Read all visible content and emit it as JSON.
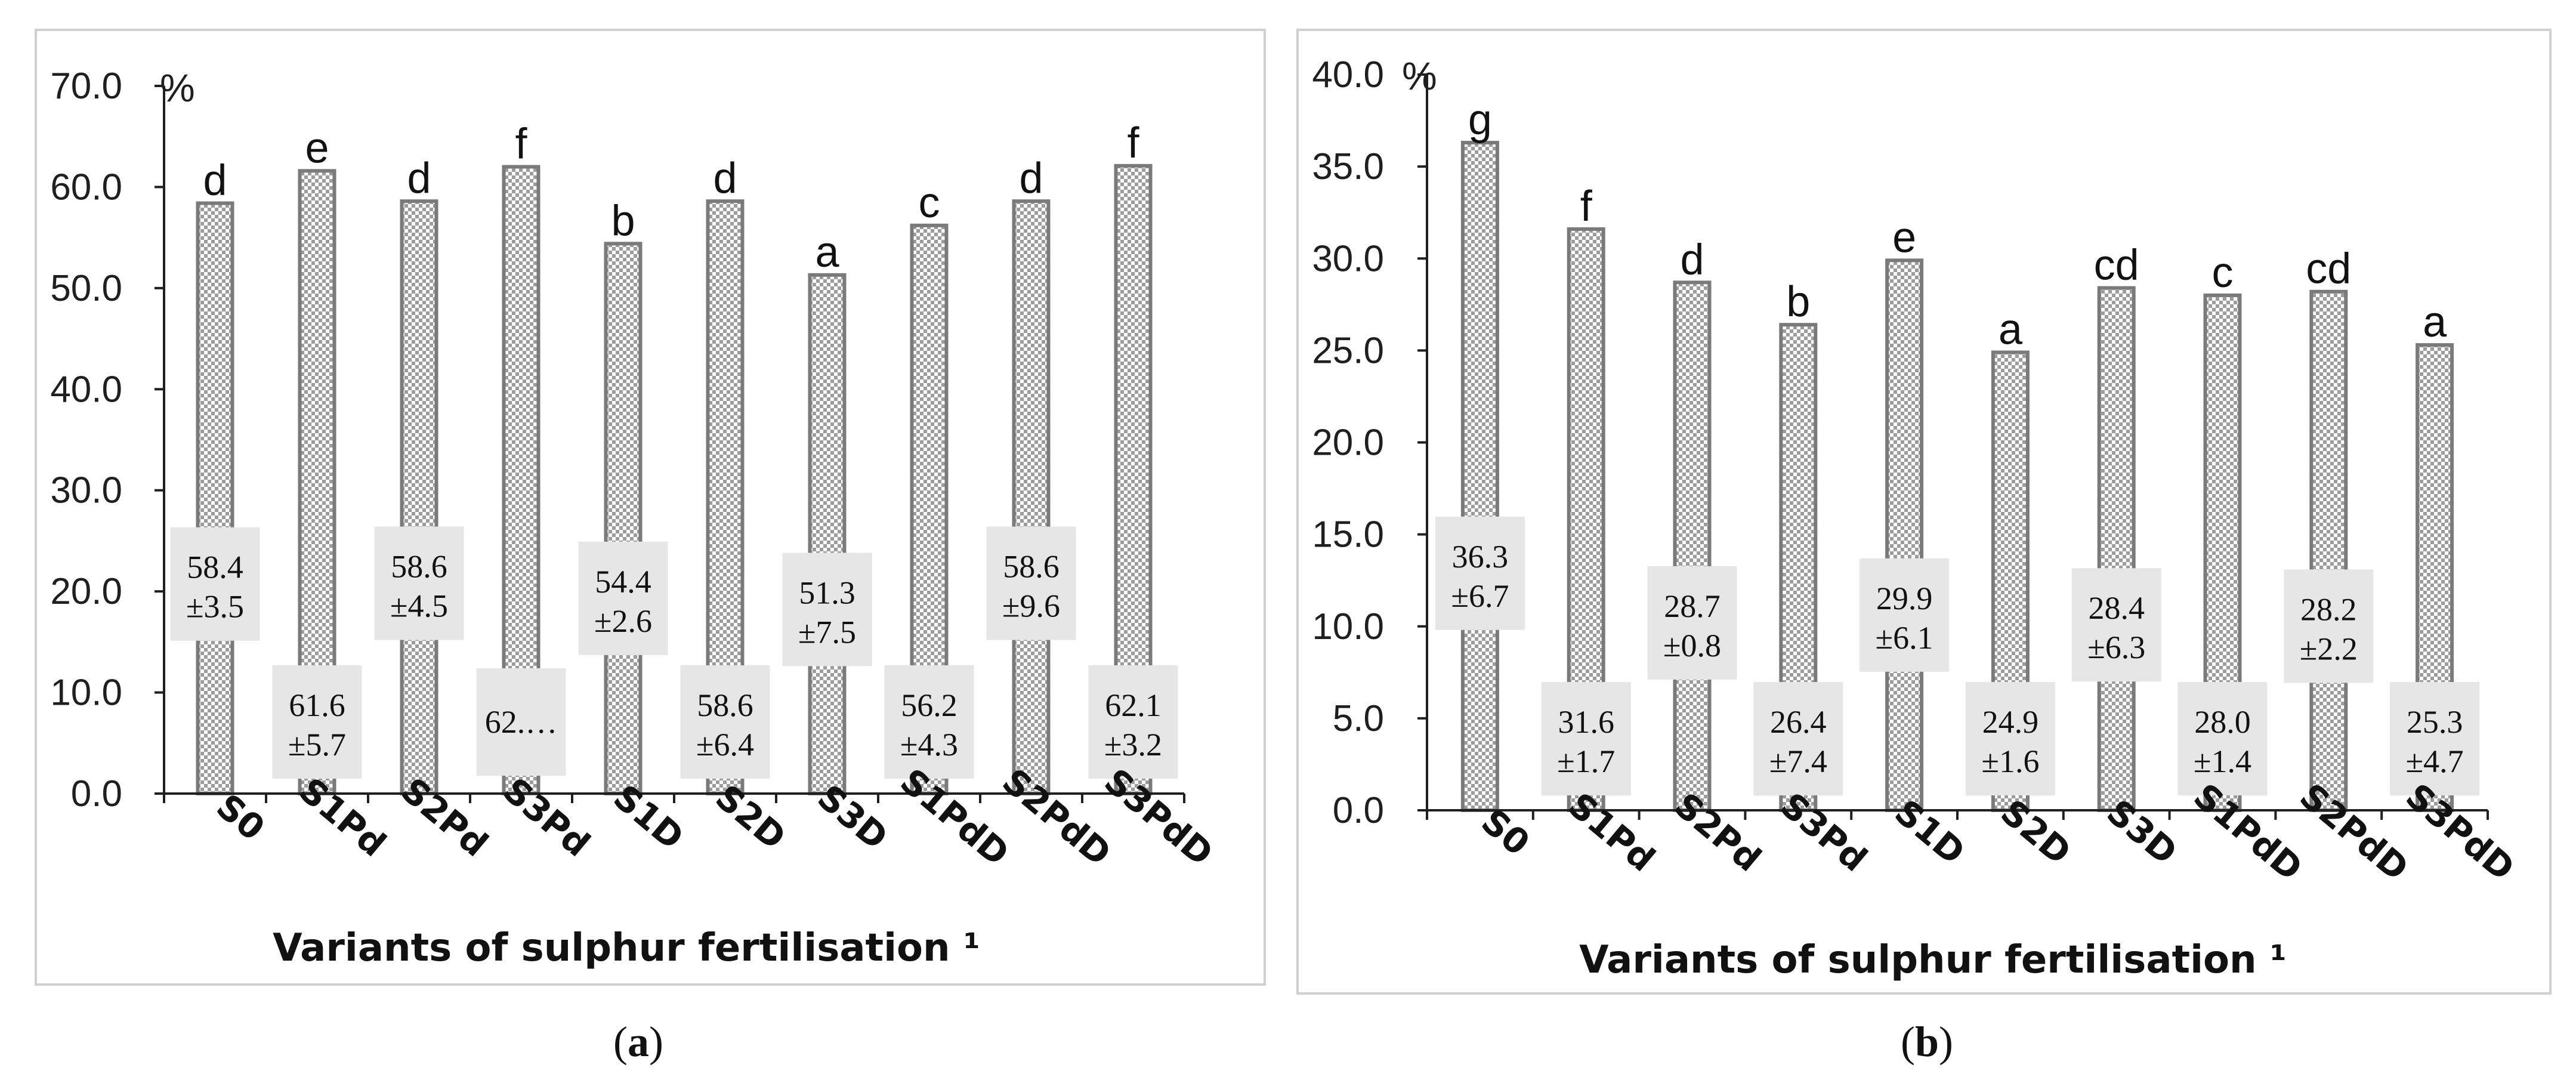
{
  "charts": [
    {
      "type": "bar",
      "panel": "a",
      "panel_caption": "(a)",
      "unit": "%",
      "xlabel": "Variants of sulphur fertilisation ¹",
      "ylabel": "%",
      "ylim": [
        0,
        70
      ],
      "yticks": [
        "0.0",
        "10.0",
        "20.0",
        "30.0",
        "40.0",
        "50.0",
        "60.0",
        "70.0"
      ],
      "categories": [
        "S0",
        "S1Pd",
        "S2Pd",
        "S3Pd",
        "S1D",
        "S2D",
        "S3D",
        "S1PdD",
        "S2PdD",
        "S3PdD"
      ],
      "values": [
        58.4,
        61.6,
        58.6,
        62.0,
        54.4,
        58.6,
        51.3,
        56.2,
        58.6,
        62.1
      ],
      "letters": [
        "d",
        "e",
        "d",
        "f",
        "b",
        "d",
        "a",
        "c",
        "d",
        "f"
      ],
      "value_labels": [
        [
          "58.4",
          "±3.5"
        ],
        [
          "61.6",
          "±5.7"
        ],
        [
          "58.6",
          "±4.5"
        ],
        [
          "62.…",
          ""
        ],
        [
          "54.4",
          "±2.6"
        ],
        [
          "58.6",
          "±6.4"
        ],
        [
          "51.3",
          "±7.5"
        ],
        [
          "56.2",
          "±4.3"
        ],
        [
          "58.6",
          "±9.6"
        ],
        [
          "62.1",
          "±3.2"
        ]
      ],
      "label_position": [
        "mid",
        "low",
        "mid",
        "low",
        "mid",
        "low",
        "mid",
        "low",
        "mid",
        "low"
      ]
    },
    {
      "type": "bar",
      "panel": "b",
      "panel_caption": "(b)",
      "unit": "%",
      "xlabel": "Variants of sulphur fertilisation ¹",
      "ylabel": "%",
      "ylim": [
        0,
        40
      ],
      "yticks": [
        "0.0",
        "5.0",
        "10.0",
        "15.0",
        "20.0",
        "25.0",
        "30.0",
        "35.0",
        "40.0"
      ],
      "categories": [
        "S0",
        "S1Pd",
        "S2Pd",
        "S3Pd",
        "S1D",
        "S2D",
        "S3D",
        "S1PdD",
        "S2PdD",
        "S3PdD"
      ],
      "values": [
        36.3,
        31.6,
        28.7,
        26.4,
        29.9,
        24.9,
        28.4,
        28.0,
        28.2,
        25.3
      ],
      "letters": [
        "g",
        "f",
        "d",
        "b",
        "e",
        "a",
        "cd",
        "c",
        "cd",
        "a"
      ],
      "value_labels": [
        [
          "36.3",
          "±6.7"
        ],
        [
          "31.6",
          "±1.7"
        ],
        [
          "28.7",
          "±0.8"
        ],
        [
          "26.4",
          "±7.4"
        ],
        [
          "29.9",
          "±6.1"
        ],
        [
          "24.9",
          "±1.6"
        ],
        [
          "28.4",
          "±6.3"
        ],
        [
          "28.0",
          "±1.4"
        ],
        [
          "28.2",
          "±2.2"
        ],
        [
          "25.3",
          "±4.7"
        ]
      ],
      "label_position": [
        "mid",
        "low",
        "mid",
        "low",
        "mid",
        "low",
        "mid",
        "low",
        "mid",
        "low"
      ]
    }
  ]
}
